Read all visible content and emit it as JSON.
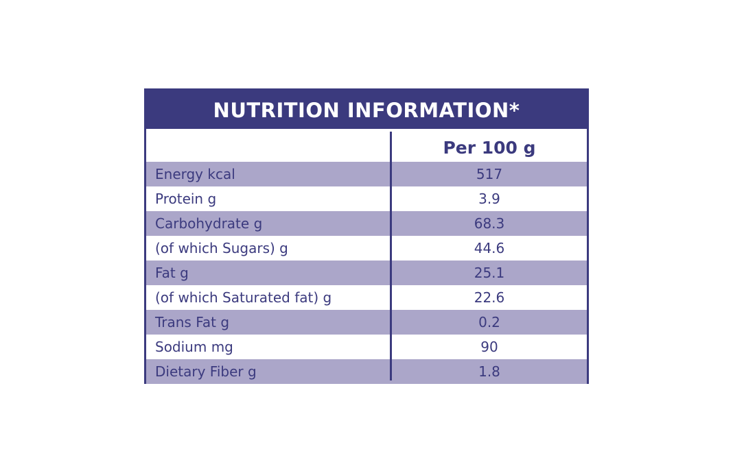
{
  "table": {
    "title": "NUTRITION INFORMATION*",
    "column_header": "Per 100 g",
    "rows": [
      [
        "Energy kcal",
        "517"
      ],
      [
        "Protein g",
        "3.9"
      ],
      [
        "Carbohydrate g",
        "68.3"
      ],
      [
        "(of which Sugars) g",
        "44.6"
      ],
      [
        "Fat g",
        "25.1"
      ],
      [
        "(of which Saturated fat) g",
        "22.6"
      ],
      [
        "Trans Fat g",
        "0.2"
      ],
      [
        "Sodium mg",
        "90"
      ],
      [
        "Dietary Fiber g",
        "1.8"
      ]
    ]
  }
}
